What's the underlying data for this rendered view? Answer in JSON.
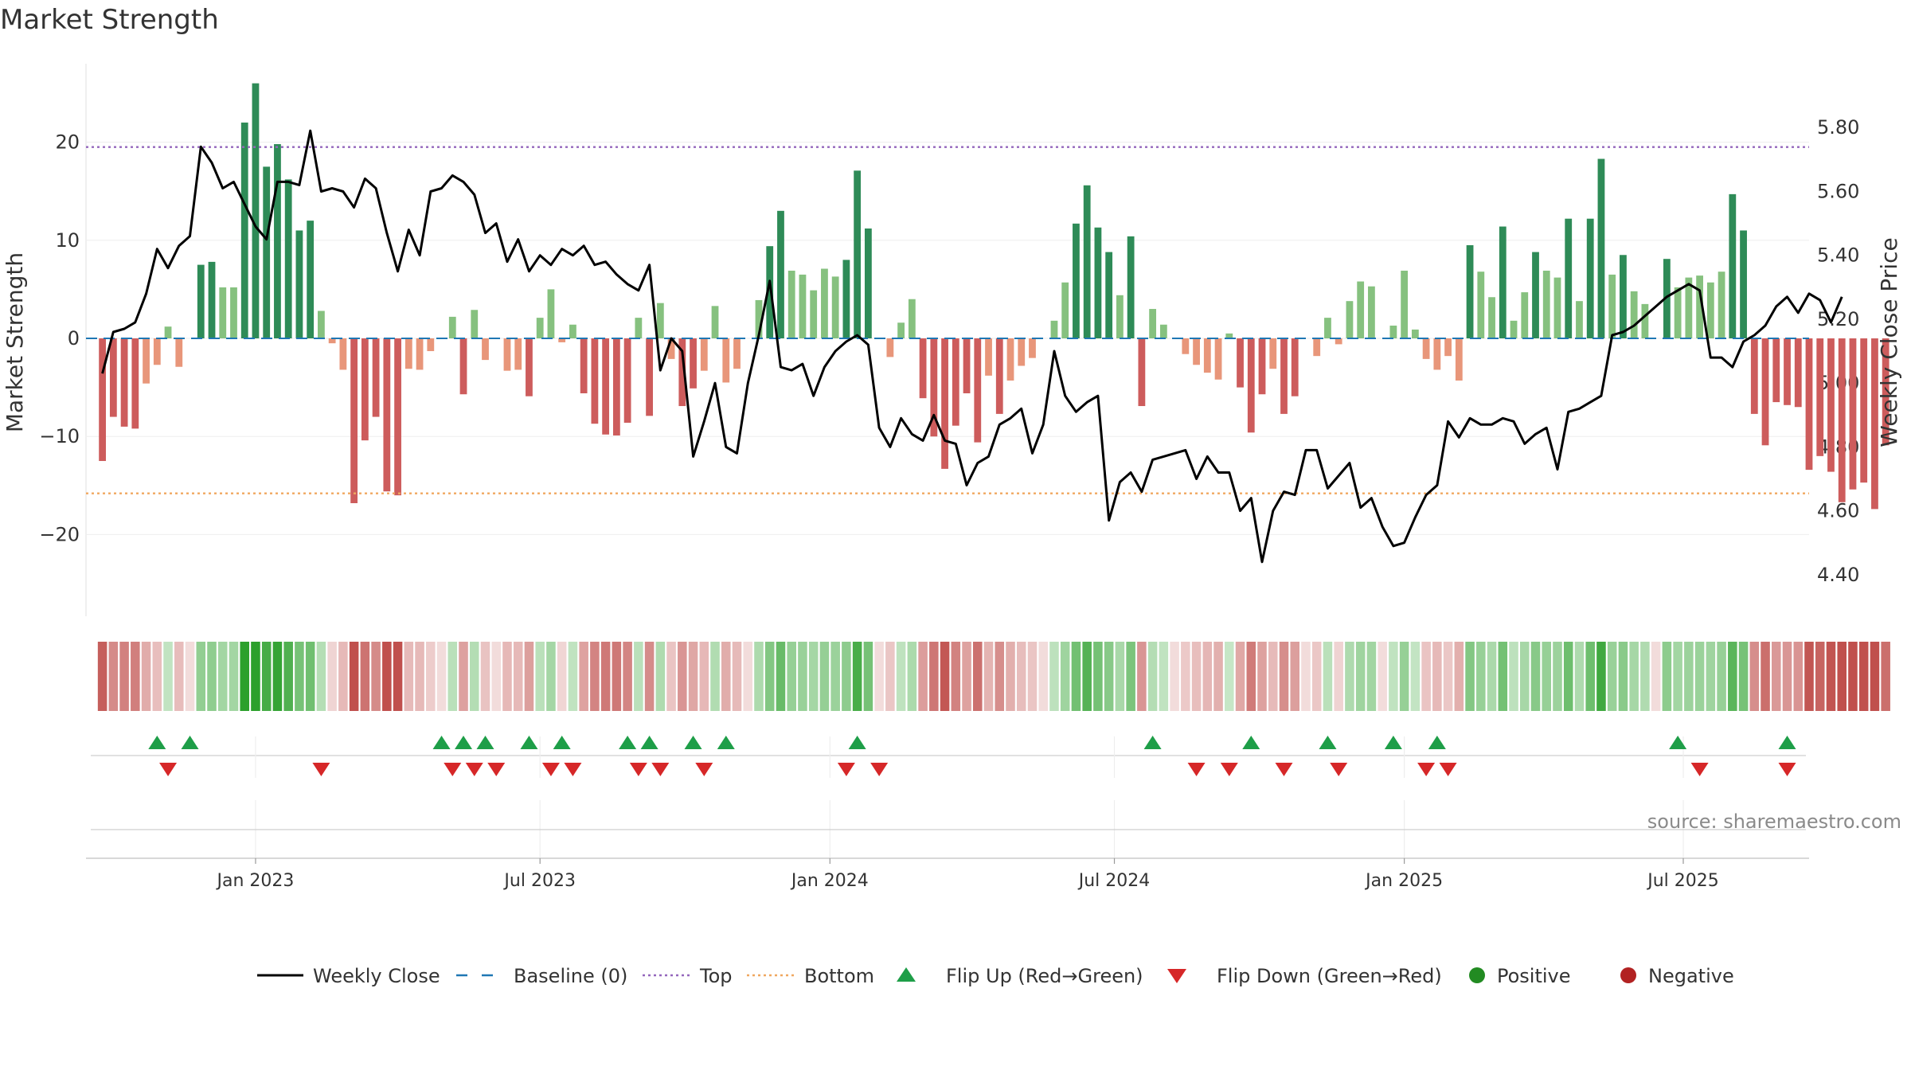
{
  "chart_data": {
    "type": "bar",
    "title": "Market Strength",
    "ylabel_left": "Market Strength",
    "ylabel_right": "Weekly Close Price",
    "left_ylim": [
      -28,
      28
    ],
    "left_yticks": [
      20,
      10,
      0,
      -10,
      -20
    ],
    "left_ytick_labels": [
      "20",
      "10",
      "0",
      "−10",
      "−20"
    ],
    "right_ylim": [
      4.28,
      6.0
    ],
    "right_yticks": [
      5.8,
      5.6,
      5.4,
      5.2,
      5.0,
      4.8,
      4.6,
      4.4
    ],
    "right_ytick_labels": [
      "5.80",
      "5.60",
      "5.40",
      "5.20",
      "5.00",
      "4.80",
      "4.60",
      "4.40"
    ],
    "top_threshold": 19.5,
    "bottom_threshold": -15.8,
    "baseline": 0,
    "x_range": [
      -15.5,
      142
    ],
    "x_ticks": [
      0,
      26,
      52.5,
      78.5,
      105,
      130.5
    ],
    "x_tick_labels": [
      "Jan 2023",
      "Jul 2023",
      "Jan 2024",
      "Jul 2024",
      "Jan 2025",
      "Jul 2025"
    ],
    "source": "source: sharemaestro.com",
    "colors": {
      "pos_strong": "#2e8b57",
      "pos_weak": "#86c17f",
      "neg_strong": "#cd5c5c",
      "neg_weak": "#e8967a",
      "close": "#000000",
      "baseline": "#1f77b4",
      "top": "#9467bd",
      "bottom": "#f0a860",
      "flip_up": "#1e9e48",
      "flip_down": "#d62728",
      "positive": "#228b22",
      "negative": "#b22222"
    },
    "strength": [
      -12.5,
      -8,
      -9,
      -9.2,
      -4.6,
      -2.7,
      1.2,
      -2.9,
      0,
      7.5,
      7.8,
      5.2,
      5.2,
      22,
      26,
      17.5,
      19.8,
      16.2,
      11,
      12,
      2.8,
      -0.5,
      -3.2,
      -16.8,
      -10.4,
      -8,
      -15.6,
      -16,
      -3.1,
      -3.2,
      -1.3,
      0,
      2.2,
      -5.7,
      2.9,
      -2.2,
      0,
      -3.3,
      -3.2,
      -5.9,
      2.1,
      5,
      -0.4,
      1.4,
      -5.6,
      -8.7,
      -9.8,
      -9.9,
      -8.6,
      2.1,
      -7.9,
      3.6,
      -2.1,
      -6.9,
      -5.1,
      -3.3,
      3.3,
      -4.5,
      -3.1,
      0,
      3.9,
      9.4,
      13,
      6.9,
      6.5,
      4.9,
      7.1,
      6.3,
      8,
      17.1,
      11.2,
      0,
      -1.9,
      1.6,
      4,
      -6.1,
      -10,
      -13.3,
      -8.9,
      -5.6,
      -10.6,
      -3.8,
      -7.7,
      -4.3,
      -2.8,
      -2,
      0,
      1.8,
      5.7,
      11.7,
      15.6,
      11.3,
      8.8,
      4.4,
      10.4,
      -6.9,
      3,
      1.4,
      0,
      -1.6,
      -2.7,
      -3.5,
      -4.2,
      0.5,
      -5,
      -9.6,
      -5.7,
      -3.1,
      -7.7,
      -5.9,
      0,
      -1.8,
      2.1,
      -0.6,
      3.8,
      5.8,
      5.3,
      0,
      1.3,
      6.9,
      0.9,
      -2.1,
      -3.2,
      -1.8,
      -4.3,
      9.5,
      6.8,
      4.2,
      11.4,
      1.8,
      4.7,
      8.8,
      6.9,
      6.2,
      12.2,
      3.8,
      12.2,
      18.3,
      6.5,
      8.5,
      4.8,
      3.5,
      0,
      8.1,
      5.2,
      6.2,
      6.4,
      5.7,
      6.8,
      14.7,
      11,
      -7.7,
      -10.9,
      -6.5,
      -6.8,
      -7,
      -13.4,
      -12,
      -13.6,
      -16.7,
      -15.4,
      -14.7,
      -17.4,
      -10.9
    ],
    "close": [
      5.03,
      5.16,
      5.17,
      5.19,
      5.28,
      5.42,
      5.36,
      5.43,
      5.46,
      5.74,
      5.69,
      5.61,
      5.63,
      5.56,
      5.49,
      5.45,
      5.63,
      5.63,
      5.62,
      5.79,
      5.6,
      5.61,
      5.6,
      5.55,
      5.64,
      5.61,
      5.47,
      5.35,
      5.48,
      5.4,
      5.6,
      5.61,
      5.65,
      5.63,
      5.59,
      5.47,
      5.5,
      5.38,
      5.45,
      5.35,
      5.4,
      5.37,
      5.42,
      5.4,
      5.43,
      5.37,
      5.38,
      5.34,
      5.31,
      5.29,
      5.37,
      5.04,
      5.14,
      5.1,
      4.77,
      4.88,
      5.0,
      4.8,
      4.78,
      5.0,
      5.15,
      5.32,
      5.05,
      5.04,
      5.06,
      4.96,
      5.05,
      5.1,
      5.13,
      5.15,
      5.12,
      4.86,
      4.8,
      4.89,
      4.84,
      4.82,
      4.9,
      4.82,
      4.81,
      4.68,
      4.75,
      4.77,
      4.87,
      4.89,
      4.92,
      4.78,
      4.87,
      5.1,
      4.96,
      4.91,
      4.94,
      4.96,
      4.57,
      4.69,
      4.72,
      4.66,
      4.76,
      4.77,
      4.78,
      4.79,
      4.7,
      4.77,
      4.72,
      4.72,
      4.6,
      4.64,
      4.44,
      4.6,
      4.66,
      4.65,
      4.79,
      4.79,
      4.67,
      4.71,
      4.75,
      4.61,
      4.64,
      4.55,
      4.49,
      4.5,
      4.58,
      4.65,
      4.68,
      4.88,
      4.83,
      4.89,
      4.87,
      4.87,
      4.89,
      4.88,
      4.81,
      4.84,
      4.86,
      4.73,
      4.91,
      4.92,
      4.94,
      4.96,
      5.15,
      5.16,
      5.18,
      5.21,
      5.24,
      5.27,
      5.29,
      5.31,
      5.29,
      5.08,
      5.08,
      5.05,
      5.13,
      5.15,
      5.18,
      5.24,
      5.27,
      5.22,
      5.28,
      5.26,
      5.19,
      5.27
    ],
    "flip_up": [
      -9,
      -6,
      17,
      19,
      21,
      25,
      28,
      34,
      36,
      40,
      43,
      55,
      82,
      91,
      98,
      104,
      108,
      130,
      140
    ],
    "flip_down": [
      -8,
      6,
      18,
      20,
      22,
      27,
      29,
      35,
      37,
      41,
      54,
      57,
      86,
      89,
      94,
      99,
      107,
      109,
      132,
      140
    ],
    "legend": [
      {
        "kind": "line",
        "label": "Weekly Close"
      },
      {
        "kind": "baseline",
        "label": "Baseline (0)"
      },
      {
        "kind": "top",
        "label": "Top"
      },
      {
        "kind": "bottom",
        "label": "Bottom"
      },
      {
        "kind": "flip-up",
        "label": "Flip Up (Red→Green)"
      },
      {
        "kind": "flip-down",
        "label": "Flip Down (Green→Red)"
      },
      {
        "kind": "positive",
        "label": "Positive"
      },
      {
        "kind": "negative",
        "label": "Negative"
      }
    ]
  }
}
